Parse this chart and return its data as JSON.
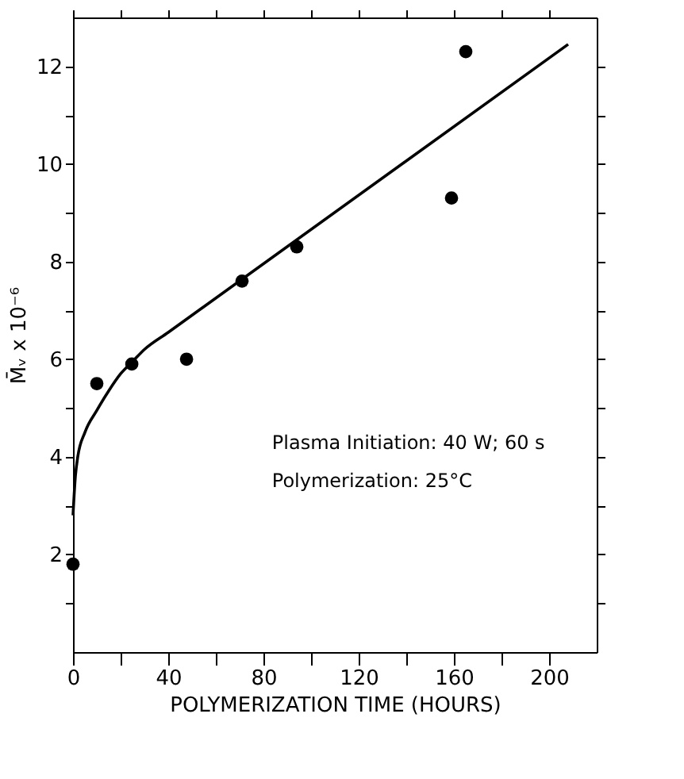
{
  "chart_data": {
    "type": "scatter",
    "xlabel": "POLYMERIZATION TIME (HOURS)",
    "ylabel": "M̄ᵥ x 10⁻⁶",
    "xlim": [
      0,
      220
    ],
    "ylim": [
      0,
      13
    ],
    "xticks": [
      0,
      {
        "value": 20,
        "label": null
      },
      40,
      {
        "value": 60,
        "label": null
      },
      80,
      {
        "value": 100,
        "label": null
      },
      120,
      {
        "value": 140,
        "label": null
      },
      160,
      {
        "value": 180,
        "label": null
      },
      200
    ],
    "yticks": [
      {
        "value": 1,
        "label": null
      },
      2,
      {
        "value": 3,
        "label": null
      },
      4,
      {
        "value": 5,
        "label": null
      },
      6,
      {
        "value": 7,
        "label": null
      },
      8,
      {
        "value": 9,
        "label": null
      },
      10,
      {
        "value": 11,
        "label": null
      },
      12
    ],
    "grid": false,
    "marker": "circle",
    "series": [
      {
        "color": "#000000",
        "x": [
          0,
          10,
          24.7,
          47.7,
          71,
          94,
          159,
          165
        ],
        "values": [
          1.8,
          5.5,
          5.9,
          6.0,
          7.6,
          8.3,
          9.3,
          12.3
        ]
      },
      {
        "type": "line",
        "color": "#000000",
        "marker": "none",
        "line_style": "solid",
        "x": [
          0,
          1,
          2,
          5,
          10,
          15,
          20,
          25,
          30,
          40,
          208
        ],
        "values": [
          2.8,
          3.6,
          4.0,
          4.5,
          4.95,
          5.35,
          5.7,
          5.95,
          6.2,
          6.55,
          12.45
        ]
      }
    ],
    "annotations": [
      "Plasma Initiation: 40 W; 60 s",
      "Polymerization: 25°C"
    ]
  }
}
